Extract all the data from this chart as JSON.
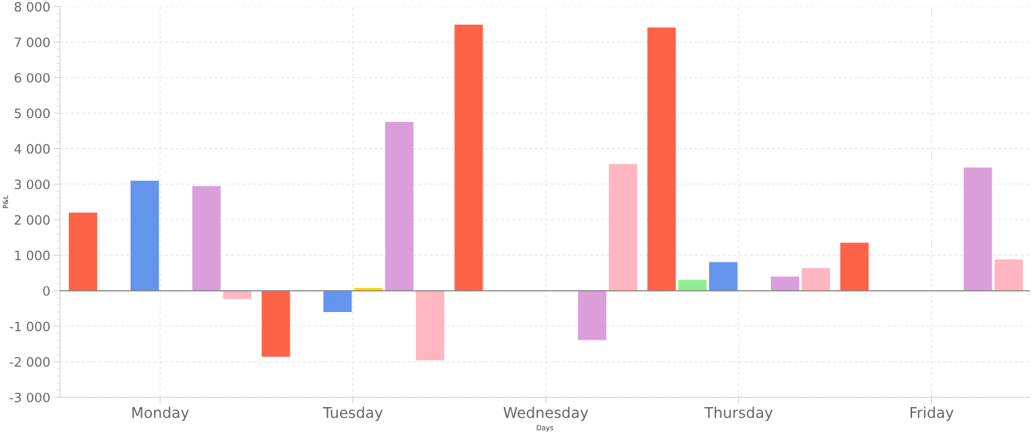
{
  "chart_data": {
    "type": "bar",
    "xlabel": "Days",
    "ylabel": "P&L",
    "categories": [
      "Monday",
      "Tuesday",
      "Wednesday",
      "Thursday",
      "Friday"
    ],
    "series": [
      {
        "color": "#ff6347",
        "values": [
          2200,
          -1860,
          7490,
          7410,
          1350
        ]
      },
      {
        "color": "#90ee90",
        "values": [
          null,
          null,
          null,
          310,
          null
        ]
      },
      {
        "color": "#6495ed",
        "values": [
          3100,
          -600,
          null,
          810,
          null
        ]
      },
      {
        "color": "#ffd700",
        "values": [
          null,
          80,
          null,
          null,
          null
        ]
      },
      {
        "color": "#da9fda",
        "values": [
          2950,
          4750,
          -1390,
          400,
          3470
        ]
      },
      {
        "color": "#ffb6c1",
        "values": [
          -230,
          -1960,
          3570,
          640,
          880
        ]
      }
    ],
    "ylim": [
      -3000,
      8000
    ],
    "yticks": [
      {
        "value": -3000,
        "label": "-3 000"
      },
      {
        "value": -2000,
        "label": "-2 000"
      },
      {
        "value": -1000,
        "label": "-1 000"
      },
      0,
      {
        "value": 1000,
        "label": "1 000"
      },
      {
        "value": 2000,
        "label": "2 000"
      },
      {
        "value": 3000,
        "label": "3 000"
      },
      {
        "value": 4000,
        "label": "4 000"
      },
      {
        "value": 5000,
        "label": "5 000"
      },
      {
        "value": 6000,
        "label": "6 000"
      },
      {
        "value": 7000,
        "label": "7 000"
      },
      {
        "value": 8000,
        "label": "8 000"
      }
    ],
    "ref_lines": [
      {
        "axis": "y",
        "value": 0,
        "color": "#808080"
      }
    ],
    "grid": true
  }
}
